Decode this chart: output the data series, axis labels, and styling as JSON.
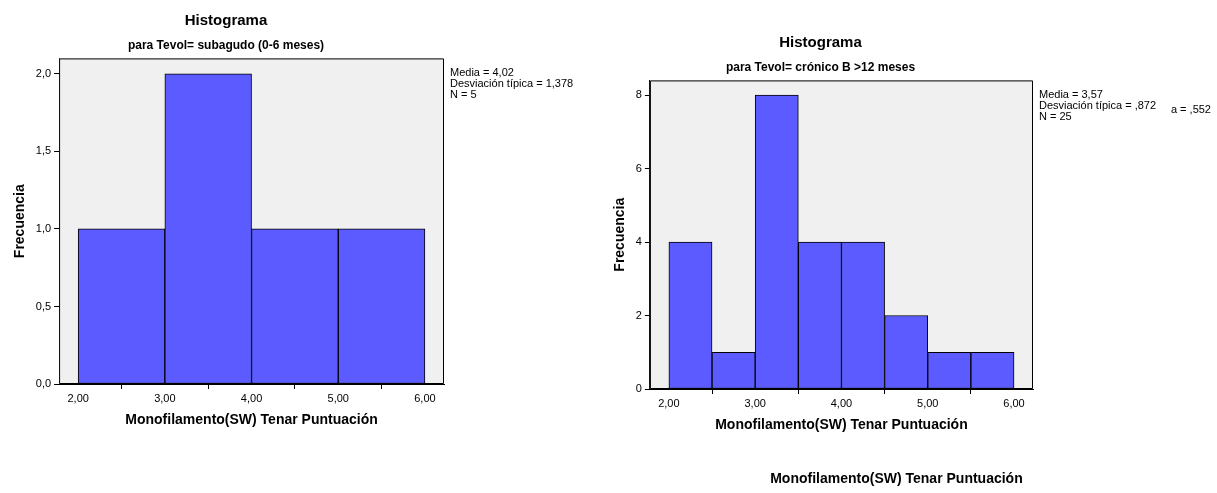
{
  "chart_data": [
    {
      "type": "histogram",
      "title": "Histograma",
      "subtitle": "para Tevol= subagudo (0-6 meses)",
      "xlabel": "Monofilamento(SW) Tenar Puntuación",
      "ylabel": "Frecuencia",
      "bins": [
        2,
        3,
        4,
        5,
        6
      ],
      "values": [
        1,
        2,
        1,
        1
      ],
      "color": "#5b5bff",
      "xlim": [
        1.78,
        6.22
      ],
      "xticks": [
        {
          "value": 2,
          "label": "2,00"
        },
        {
          "value": 3,
          "label": "3,00"
        },
        {
          "value": 4,
          "label": "4,00"
        },
        {
          "value": 5,
          "label": "5,00"
        },
        {
          "value": 6,
          "label": "6,00"
        }
      ],
      "ylim": [
        0,
        2.1
      ],
      "yticks": [
        {
          "value": 0,
          "label": "0,0"
        },
        {
          "value": 0.5,
          "label": "0,5"
        },
        {
          "value": 1,
          "label": "1,0"
        },
        {
          "value": 1.5,
          "label": "1,5"
        },
        {
          "value": 2,
          "label": "2,0"
        }
      ],
      "grid": false,
      "legend": false,
      "annotations": [
        "Media = 4,02",
        "Desviación típica = 1,378",
        "N = 5"
      ]
    },
    {
      "type": "histogram",
      "title": "Histograma",
      "subtitle": "para Tevol= crónico B >12 meses",
      "xlabel": "Monofilamento(SW) Tenar Puntuación",
      "ylabel": "Frecuencia",
      "bins": [
        2,
        2.5,
        3,
        3.5,
        4,
        4.5,
        5,
        5.5,
        6
      ],
      "values": [
        4,
        1,
        8,
        4,
        4,
        2,
        1,
        1
      ],
      "color": "#5b5bff",
      "xlim": [
        1.78,
        6.22
      ],
      "xticks": [
        {
          "value": 2,
          "label": "2,00"
        },
        {
          "value": 3,
          "label": "3,00"
        },
        {
          "value": 4,
          "label": "4,00"
        },
        {
          "value": 5,
          "label": "5,00"
        },
        {
          "value": 6,
          "label": "6,00"
        }
      ],
      "ylim": [
        0,
        8.4
      ],
      "yticks": [
        0,
        2,
        4,
        6,
        8
      ],
      "grid": false,
      "legend": false,
      "annotations": [
        "Media = 3,57",
        "Desviación típica = ,872",
        "N = 25",
        "a = ,552",
        "Monofilamento(SW) Tenar Puntuación"
      ]
    }
  ]
}
